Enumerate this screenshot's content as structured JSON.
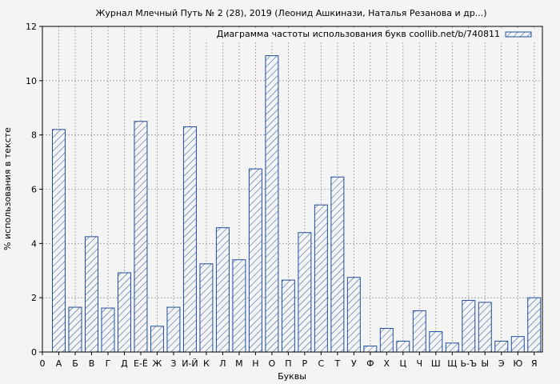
{
  "chart_data": {
    "type": "bar",
    "title": "Журнал Млечный Путь № 2 (28), 2019 (Леонид Ашкинази, Наталья Резанова и др...)",
    "xlabel": "Буквы",
    "ylabel": "% использования в тексте",
    "ylim": [
      0,
      12
    ],
    "yticks": [
      "0",
      "2",
      "4",
      "6",
      "8",
      "10",
      "12"
    ],
    "x_axis_start_label": "0",
    "grid": true,
    "legend_position": "top-right",
    "series": [
      {
        "name": "Диаграмма частоты использования букв coollib.net/b/740811",
        "color": "#1f4e9c",
        "hatch": "diagonal"
      }
    ],
    "categories": [
      "А",
      "Б",
      "В",
      "Г",
      "Д",
      "Е-Ё",
      "Ж",
      "З",
      "И-Й",
      "К",
      "Л",
      "М",
      "Н",
      "О",
      "П",
      "Р",
      "С",
      "Т",
      "У",
      "Ф",
      "Х",
      "Ц",
      "Ч",
      "Ш",
      "Щ",
      "Ь-Ъ",
      "Ы",
      "Э",
      "Ю",
      "Я"
    ],
    "values": [
      8.2,
      1.65,
      4.25,
      1.62,
      2.92,
      8.5,
      0.95,
      1.65,
      8.3,
      3.25,
      4.58,
      3.4,
      6.75,
      10.92,
      2.65,
      4.4,
      5.42,
      6.45,
      2.75,
      0.22,
      0.87,
      0.4,
      1.52,
      0.75,
      0.33,
      1.9,
      1.83,
      0.4,
      0.57,
      2.0
    ]
  }
}
